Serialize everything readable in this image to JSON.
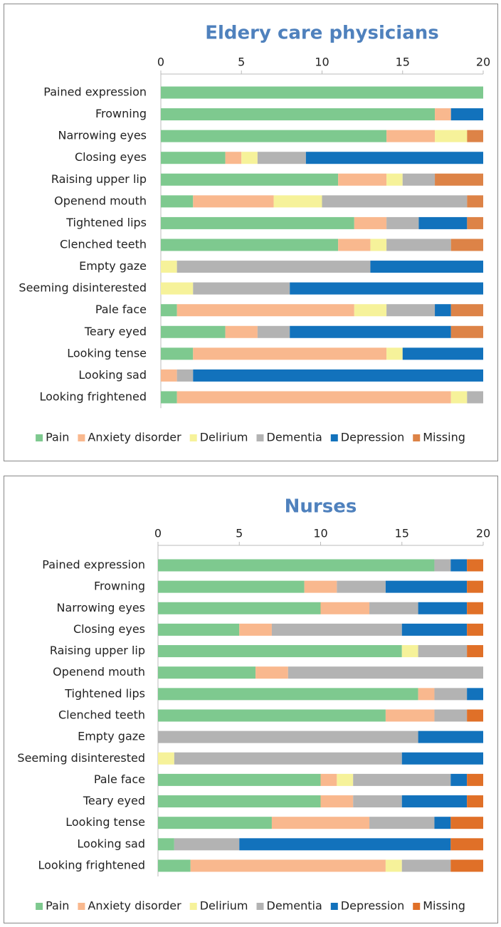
{
  "chart_data": [
    {
      "type": "stacked_bar",
      "title": "Eldery care physicians",
      "categories": [
        "Pained expression",
        "Frowning",
        "Narrowing eyes",
        "Closing eyes",
        "Raising upper lip",
        "Openend mouth",
        "Tightened lips",
        "Clenched teeth",
        "Empty gaze",
        "Seeming disinterested",
        "Pale face",
        "Teary eyed",
        "Looking tense",
        "Looking sad",
        "Looking frightened"
      ],
      "series": [
        {
          "name": "Pain",
          "color": "#7ec98f",
          "values": [
            20,
            17,
            14,
            4,
            11,
            2,
            12,
            11,
            0,
            0,
            1,
            4,
            2,
            0,
            1
          ]
        },
        {
          "name": "Anxiety disorder",
          "color": "#f9b88e",
          "values": [
            0,
            1,
            3,
            1,
            3,
            5,
            2,
            2,
            0,
            0,
            11,
            2,
            12,
            1,
            17
          ]
        },
        {
          "name": "Delirium",
          "color": "#f6f29a",
          "values": [
            0,
            0,
            2,
            1,
            1,
            3,
            0,
            1,
            1,
            2,
            2,
            0,
            1,
            0,
            1
          ]
        },
        {
          "name": "Dementia",
          "color": "#b3b3b3",
          "values": [
            0,
            0,
            0,
            3,
            2,
            9,
            2,
            4,
            12,
            6,
            3,
            2,
            0,
            1,
            1
          ]
        },
        {
          "name": "Depression",
          "color": "#1272bc",
          "values": [
            0,
            2,
            0,
            11,
            0,
            0,
            3,
            0,
            7,
            12,
            1,
            10,
            5,
            18,
            0
          ]
        },
        {
          "name": "Missing",
          "color": "#dd8347",
          "values": [
            0,
            0,
            1,
            0,
            3,
            1,
            1,
            2,
            0,
            0,
            2,
            2,
            0,
            0,
            0
          ]
        }
      ],
      "xlim": [
        0,
        20
      ],
      "xticks": [
        0,
        5,
        10,
        15,
        20
      ],
      "legend": "bottom"
    },
    {
      "type": "stacked_bar",
      "title": "Nurses",
      "categories": [
        "Pained expression",
        "Frowning",
        "Narrowing eyes",
        "Closing eyes",
        "Raising upper lip",
        "Openend mouth",
        "Tightened lips",
        "Clenched teeth",
        "Empty gaze",
        "Seeming disinterested",
        "Pale face",
        "Teary eyed",
        "Looking tense",
        "Looking sad",
        "Looking frightened"
      ],
      "series": [
        {
          "name": "Pain",
          "color": "#7ec98f",
          "values": [
            17,
            9,
            10,
            5,
            15,
            6,
            16,
            14,
            0,
            0,
            10,
            10,
            7,
            1,
            2
          ]
        },
        {
          "name": "Anxiety disorder",
          "color": "#f9b88e",
          "values": [
            0,
            2,
            3,
            2,
            0,
            2,
            1,
            3,
            0,
            0,
            1,
            2,
            6,
            0,
            12
          ]
        },
        {
          "name": "Delirium",
          "color": "#f6f29a",
          "values": [
            0,
            0,
            0,
            0,
            1,
            0,
            0,
            0,
            0,
            1,
            1,
            0,
            0,
            0,
            1
          ]
        },
        {
          "name": "Dementia",
          "color": "#b3b3b3",
          "values": [
            1,
            3,
            3,
            8,
            3,
            12,
            2,
            2,
            16,
            14,
            6,
            3,
            4,
            4,
            3
          ]
        },
        {
          "name": "Depression",
          "color": "#1272bc",
          "values": [
            1,
            5,
            3,
            4,
            0,
            0,
            1,
            0,
            4,
            5,
            1,
            4,
            1,
            13,
            0
          ]
        },
        {
          "name": "Missing",
          "color": "#e07028",
          "values": [
            1,
            1,
            1,
            1,
            1,
            0,
            0,
            1,
            0,
            0,
            1,
            1,
            2,
            2,
            2
          ]
        }
      ],
      "xlim": [
        0,
        20
      ],
      "xticks": [
        0,
        5,
        10,
        15,
        20
      ],
      "legend": "bottom"
    }
  ]
}
